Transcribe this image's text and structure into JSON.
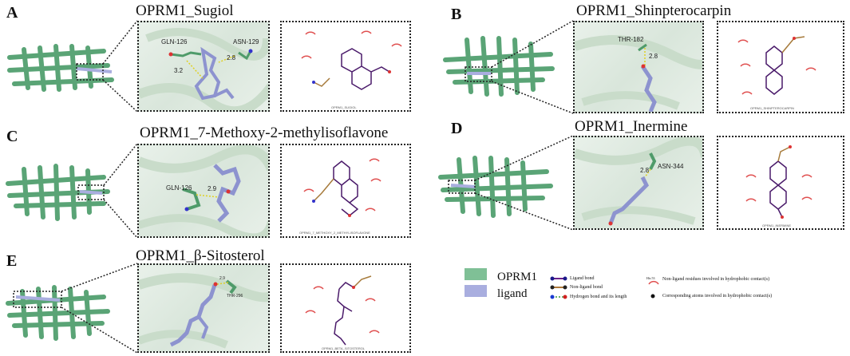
{
  "panels": [
    {
      "letter": "A",
      "title": "OPRM1_Sugiol",
      "residues": [
        "GLN-126",
        "ASN-129"
      ],
      "distances": [
        "2.8",
        "3.2"
      ],
      "map_label": "OPRM1_SUGIOL"
    },
    {
      "letter": "B",
      "title": "OPRM1_Shinpterocarpin",
      "residues": [
        "THR-182"
      ],
      "distances": [
        "2.8"
      ],
      "map_label": "OPRM1_SHINPTEROCARPIN"
    },
    {
      "letter": "C",
      "title": "OPRM1_7-Methoxy-2-methylisoflavone",
      "residues": [
        "GLN-126"
      ],
      "distances": [
        "2.9"
      ],
      "map_label": "OPRM1_7_METHOXY_2_METHYLISOFLAVONE"
    },
    {
      "letter": "D",
      "title": "OPRM1_Inermine",
      "residues": [
        "ASN-344"
      ],
      "distances": [
        "2.8"
      ],
      "map_label": "OPRM1_INERMINE"
    },
    {
      "letter": "E",
      "title": "OPRM1_β-Sitosterol",
      "residues": [
        "THR-296"
      ],
      "distances": [
        "2.9"
      ],
      "map_label": "OPRM1_BETA_SITOSTEROL"
    }
  ],
  "legend": {
    "protein_label": "OPRM1",
    "ligand_label": "ligand",
    "protein_color": "#7fc096",
    "ligand_color": "#a9aedf",
    "key": {
      "ligand_bond": "Ligand bond",
      "non_ligand_bond": "Non-ligand bond",
      "hbond": "Hydrogen bond and its length",
      "hydrophobic_residue_sample": "His 53",
      "hydrophobic_residues": "Non-ligand residues involved in hydrophobic contact(s)",
      "hydrophobic_atoms": "Corresponding atoms involved in hydrophobic contact(s)"
    }
  }
}
